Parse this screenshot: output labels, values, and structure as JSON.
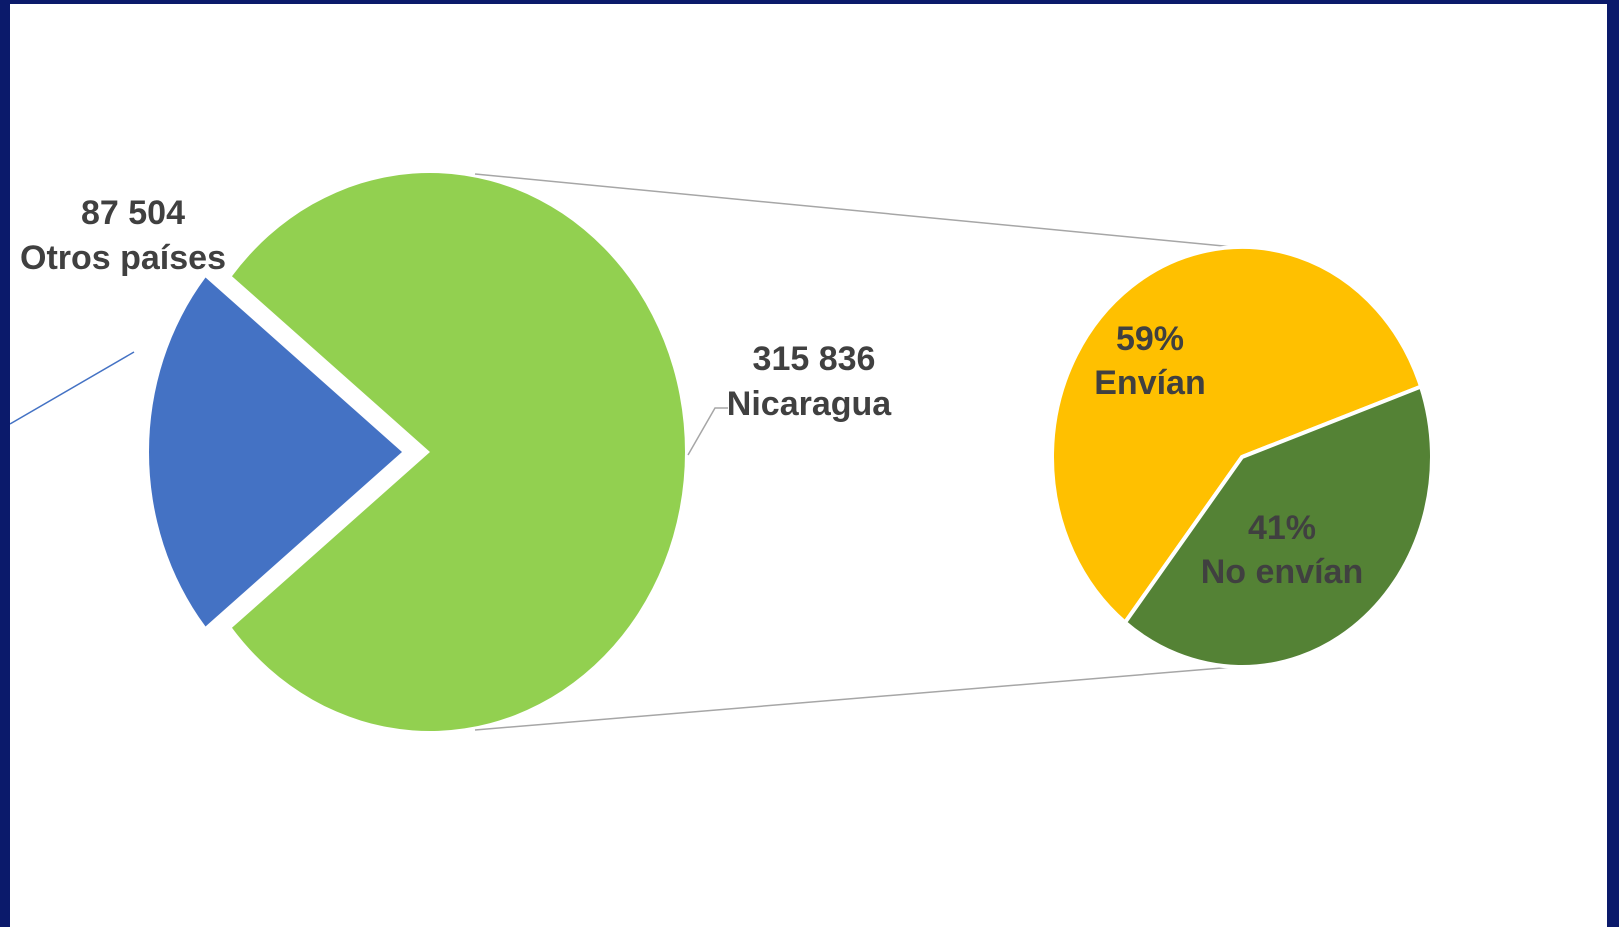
{
  "chart_data": [
    {
      "type": "pie",
      "slices": [
        {
          "value_label": "315 836",
          "name": "Nicaragua",
          "value": 315836,
          "color": "#92d050"
        },
        {
          "value_label": "87 504",
          "name": "Otros países",
          "value": 87504,
          "color": "#4472c4",
          "exploded": true
        }
      ]
    },
    {
      "type": "pie",
      "slices": [
        {
          "value_label": "59%",
          "name": "Envían",
          "value": 59,
          "color": "#ffc000"
        },
        {
          "value_label": "41%",
          "name": "No envían",
          "value": 41,
          "color": "#548235"
        }
      ]
    }
  ]
}
